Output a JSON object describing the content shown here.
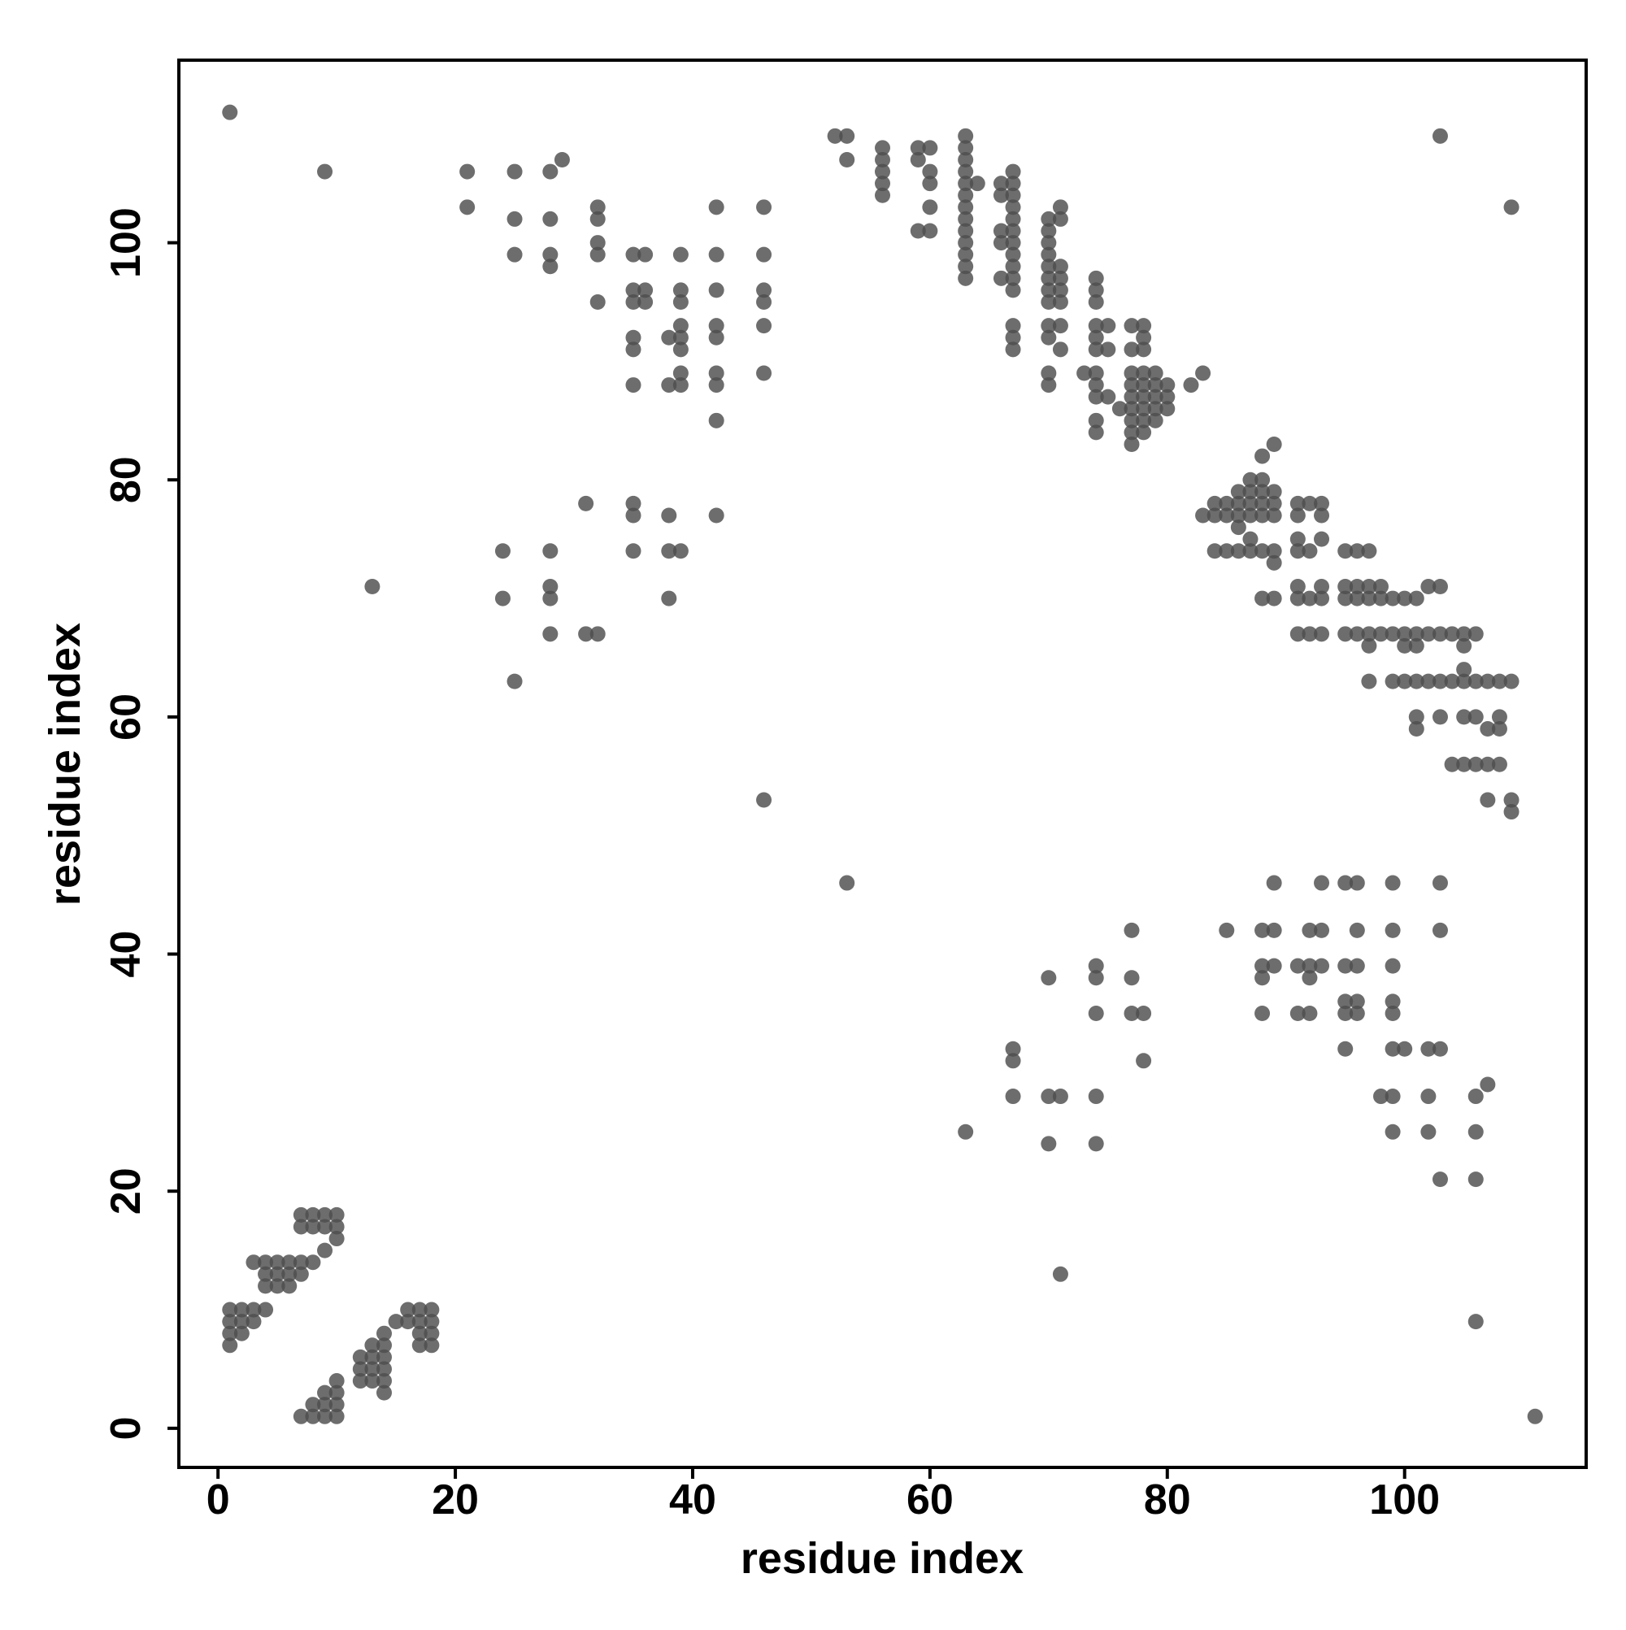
{
  "chart_data": {
    "type": "scatter",
    "xlabel": "residue index",
    "ylabel": "residue index",
    "xlim": [
      -3.3,
      115.3
    ],
    "ylim": [
      -3.3,
      115.4
    ],
    "xticks": [
      0,
      20,
      40,
      60,
      80,
      100
    ],
    "yticks": [
      0,
      20,
      40,
      60,
      80,
      100
    ],
    "color": "#4d4d4d",
    "alpha": 0.82,
    "grid": false,
    "x": [
      1,
      1,
      1,
      1,
      1,
      2,
      2,
      2,
      3,
      3,
      3,
      4,
      4,
      4,
      4,
      5,
      5,
      5,
      6,
      6,
      6,
      7,
      7,
      7,
      7,
      7,
      8,
      8,
      8,
      8,
      8,
      9,
      9,
      9,
      9,
      9,
      9,
      9,
      10,
      10,
      10,
      10,
      10,
      10,
      10,
      12,
      12,
      12,
      13,
      13,
      13,
      13,
      13,
      14,
      14,
      14,
      14,
      14,
      14,
      15,
      16,
      16,
      17,
      17,
      17,
      17,
      18,
      18,
      18,
      18,
      21,
      21,
      24,
      24,
      25,
      25,
      25,
      25,
      28,
      28,
      28,
      28,
      28,
      28,
      28,
      28,
      29,
      31,
      31,
      32,
      32,
      32,
      32,
      32,
      32,
      35,
      35,
      35,
      35,
      35,
      35,
      35,
      35,
      35,
      36,
      36,
      36,
      38,
      38,
      38,
      38,
      38,
      39,
      39,
      39,
      39,
      39,
      39,
      39,
      39,
      39,
      42,
      42,
      42,
      42,
      42,
      42,
      42,
      42,
      42,
      46,
      46,
      46,
      46,
      46,
      46,
      46,
      52,
      53,
      53,
      53,
      56,
      56,
      56,
      56,
      56,
      59,
      59,
      59,
      60,
      60,
      60,
      60,
      60,
      63,
      63,
      63,
      63,
      63,
      63,
      63,
      63,
      63,
      63,
      63,
      63,
      63,
      63,
      64,
      66,
      66,
      66,
      66,
      66,
      67,
      67,
      67,
      67,
      67,
      67,
      67,
      67,
      67,
      67,
      67,
      67,
      67,
      67,
      67,
      67,
      67,
      70,
      70,
      70,
      70,
      70,
      70,
      70,
      70,
      70,
      70,
      70,
      70,
      70,
      70,
      70,
      71,
      71,
      71,
      71,
      71,
      71,
      71,
      71,
      71,
      71,
      73,
      74,
      74,
      74,
      74,
      74,
      74,
      74,
      74,
      74,
      74,
      74,
      74,
      74,
      74,
      74,
      74,
      75,
      75,
      75,
      76,
      77,
      77,
      77,
      77,
      77,
      77,
      77,
      77,
      77,
      77,
      77,
      77,
      78,
      78,
      78,
      78,
      78,
      78,
      78,
      78,
      78,
      78,
      78,
      79,
      79,
      79,
      79,
      79,
      80,
      80,
      80,
      82,
      83,
      83,
      84,
      84,
      84,
      85,
      85,
      85,
      85,
      86,
      86,
      86,
      86,
      86,
      87,
      87,
      87,
      87,
      87,
      87,
      88,
      88,
      88,
      88,
      88,
      88,
      88,
      88,
      88,
      88,
      88,
      89,
      89,
      89,
      89,
      89,
      89,
      89,
      89,
      89,
      89,
      91,
      91,
      91,
      91,
      91,
      91,
      91,
      91,
      91,
      92,
      92,
      92,
      92,
      92,
      92,
      92,
      92,
      93,
      93,
      93,
      93,
      93,
      93,
      93,
      93,
      93,
      95,
      95,
      95,
      95,
      95,
      95,
      95,
      95,
      95,
      96,
      96,
      96,
      96,
      96,
      96,
      96,
      96,
      96,
      97,
      97,
      97,
      97,
      97,
      97,
      98,
      98,
      98,
      98,
      99,
      99,
      99,
      99,
      99,
      99,
      99,
      99,
      99,
      99,
      99,
      100,
      100,
      100,
      100,
      100,
      101,
      101,
      101,
      101,
      101,
      101,
      102,
      102,
      102,
      102,
      102,
      102,
      103,
      103,
      103,
      103,
      103,
      103,
      103,
      103,
      103,
      104,
      104,
      104,
      105,
      105,
      105,
      105,
      105,
      105,
      106,
      106,
      106,
      106,
      106,
      106,
      106,
      106,
      107,
      107,
      107,
      107,
      107,
      108,
      108,
      108,
      108,
      109,
      109,
      109,
      109,
      111
    ],
    "y": [
      111,
      10,
      9,
      8,
      7,
      10,
      9,
      8,
      10,
      9,
      14,
      10,
      14,
      13,
      12,
      14,
      13,
      12,
      14,
      13,
      12,
      14,
      13,
      18,
      17,
      1,
      14,
      18,
      17,
      2,
      1,
      106,
      18,
      17,
      15,
      3,
      2,
      1,
      18,
      17,
      16,
      4,
      3,
      2,
      1,
      6,
      5,
      4,
      71,
      7,
      6,
      5,
      4,
      8,
      7,
      6,
      5,
      4,
      3,
      9,
      10,
      9,
      10,
      9,
      8,
      7,
      10,
      9,
      8,
      7,
      106,
      103,
      74,
      70,
      106,
      102,
      99,
      63,
      106,
      102,
      99,
      98,
      74,
      71,
      70,
      67,
      107,
      78,
      67,
      103,
      102,
      100,
      99,
      95,
      67,
      99,
      96,
      95,
      92,
      91,
      88,
      78,
      77,
      74,
      99,
      96,
      95,
      92,
      88,
      77,
      74,
      70,
      99,
      96,
      95,
      93,
      92,
      91,
      89,
      88,
      74,
      103,
      99,
      96,
      93,
      92,
      89,
      88,
      85,
      77,
      103,
      99,
      96,
      95,
      93,
      89,
      53,
      109,
      109,
      107,
      46,
      108,
      107,
      106,
      105,
      104,
      108,
      107,
      101,
      108,
      106,
      105,
      103,
      101,
      109,
      108,
      107,
      106,
      105,
      104,
      103,
      102,
      101,
      100,
      99,
      98,
      97,
      25,
      105,
      105,
      104,
      101,
      100,
      97,
      106,
      105,
      104,
      103,
      102,
      101,
      100,
      99,
      98,
      97,
      96,
      93,
      92,
      91,
      32,
      31,
      28,
      102,
      101,
      100,
      99,
      98,
      97,
      96,
      95,
      93,
      92,
      89,
      88,
      38,
      28,
      24,
      103,
      102,
      98,
      97,
      96,
      95,
      93,
      91,
      28,
      13,
      89,
      97,
      96,
      95,
      93,
      92,
      91,
      89,
      88,
      87,
      85,
      84,
      39,
      38,
      35,
      28,
      24,
      93,
      91,
      87,
      86,
      93,
      91,
      89,
      88,
      87,
      86,
      85,
      84,
      83,
      42,
      38,
      35,
      93,
      92,
      91,
      89,
      88,
      87,
      86,
      85,
      84,
      35,
      31,
      89,
      88,
      87,
      86,
      85,
      88,
      87,
      86,
      88,
      89,
      77,
      78,
      77,
      74,
      78,
      77,
      74,
      42,
      79,
      78,
      77,
      76,
      74,
      80,
      79,
      78,
      77,
      75,
      74,
      82,
      80,
      79,
      78,
      77,
      74,
      70,
      42,
      39,
      38,
      35,
      83,
      79,
      78,
      77,
      74,
      73,
      70,
      46,
      42,
      39,
      78,
      77,
      75,
      74,
      71,
      70,
      67,
      39,
      35,
      78,
      74,
      70,
      67,
      42,
      39,
      38,
      35,
      78,
      77,
      75,
      71,
      70,
      67,
      46,
      42,
      39,
      74,
      71,
      70,
      67,
      46,
      39,
      36,
      35,
      32,
      74,
      71,
      70,
      67,
      46,
      42,
      39,
      36,
      35,
      74,
      71,
      70,
      67,
      66,
      63,
      71,
      70,
      67,
      28,
      70,
      67,
      63,
      46,
      42,
      39,
      36,
      35,
      32,
      28,
      25,
      70,
      67,
      66,
      63,
      32,
      70,
      67,
      66,
      63,
      60,
      59,
      71,
      67,
      63,
      32,
      28,
      25,
      109,
      71,
      67,
      63,
      60,
      46,
      42,
      32,
      21,
      67,
      63,
      56,
      67,
      66,
      64,
      63,
      60,
      56,
      67,
      63,
      60,
      56,
      28,
      25,
      21,
      9,
      63,
      59,
      56,
      53,
      29,
      63,
      60,
      59,
      56,
      103,
      63,
      53,
      52,
      1
    ]
  }
}
